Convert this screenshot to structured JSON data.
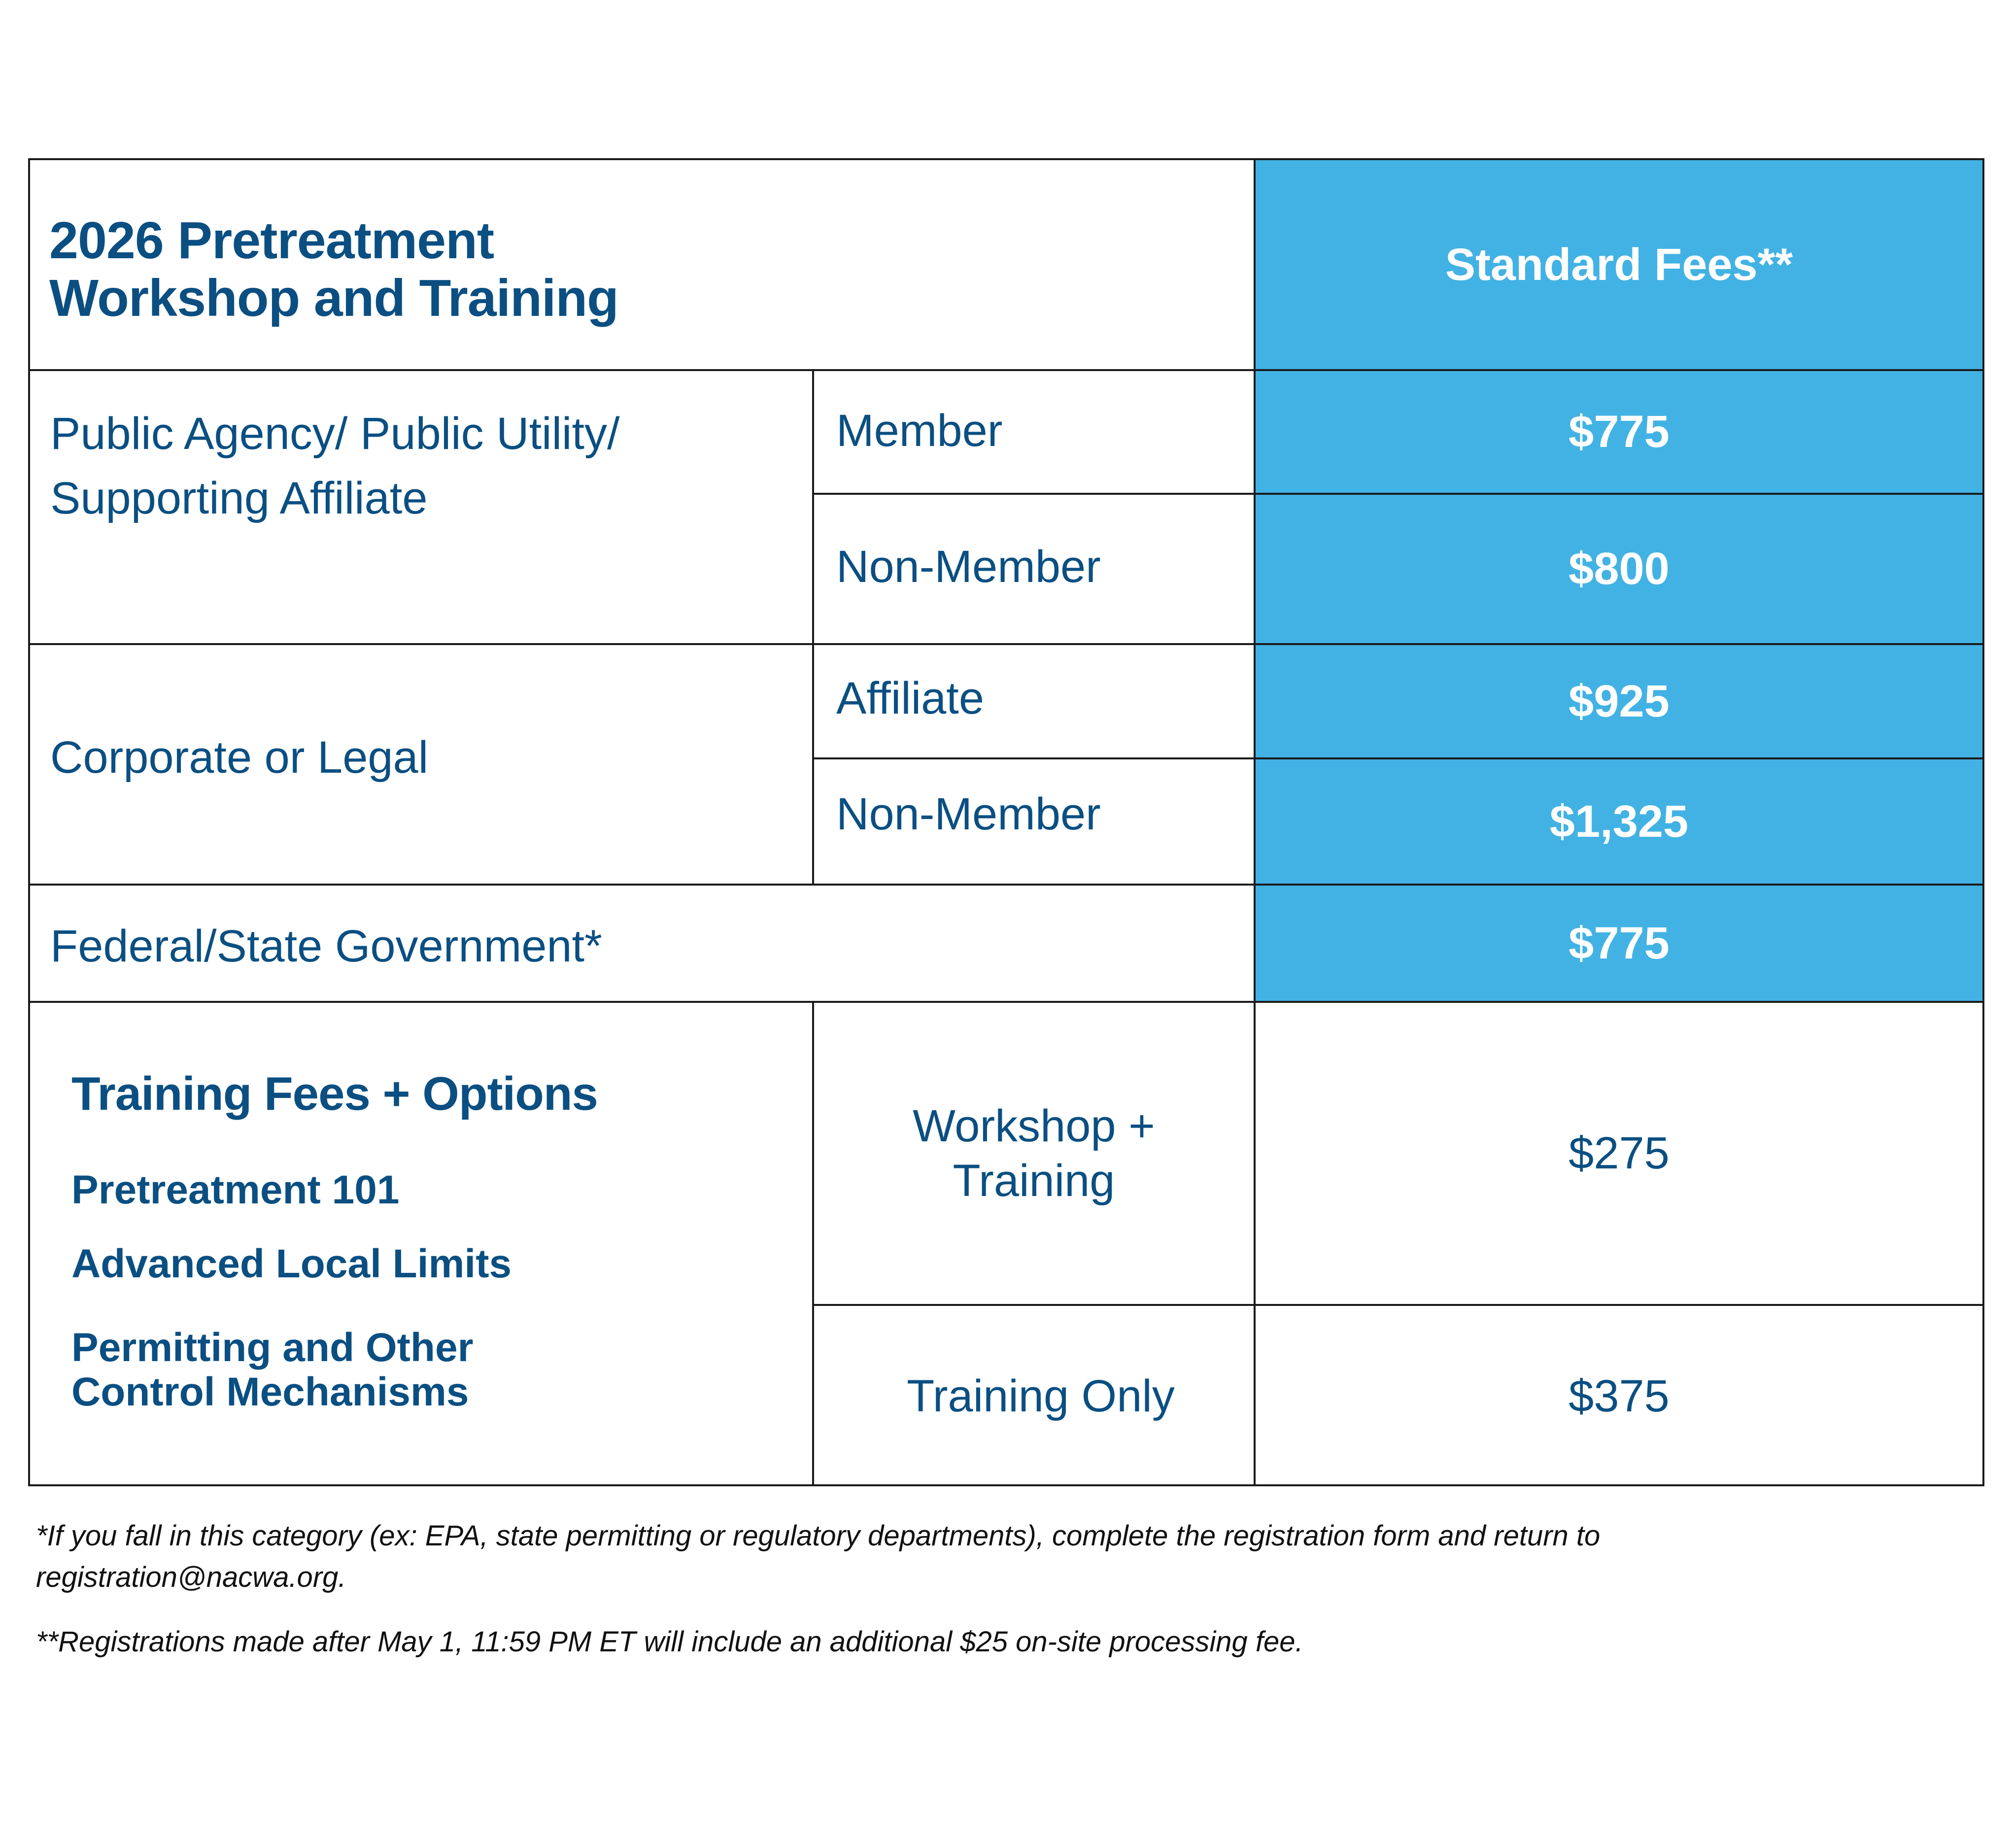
{
  "header": {
    "title_line1": "2026 Pretreatment",
    "title_line2": "Workshop and Training",
    "fee_column": "Standard Fees**"
  },
  "rows": {
    "public": {
      "category_line1": "Public Agency/ Public Utility/",
      "category_line2": "Supporting Affiliate",
      "member_label": "Member",
      "member_price": "$775",
      "nonmember_label": "Non-Member",
      "nonmember_price": "$800"
    },
    "corporate": {
      "category": "Corporate or Legal",
      "affiliate_label": "Affiliate",
      "affiliate_price": "$925",
      "nonmember_label": "Non-Member",
      "nonmember_price": "$1,325"
    },
    "government": {
      "category": "Federal/State Government*",
      "price": "$775"
    }
  },
  "training": {
    "heading": "Training Fees + Options",
    "items": [
      "Pretreatment 101",
      "Advanced Local Limits",
      "Permitting and Other",
      "Control Mechanisms"
    ],
    "workshop_label_line1": "Workshop +",
    "workshop_label_line2": "Training",
    "workshop_price": "$275",
    "training_only_label": "Training Only",
    "training_only_price": "$375"
  },
  "footnotes": {
    "note1_line1": "*If you fall in this category (ex: EPA, state permitting or regulatory departments), complete the registration form and return to",
    "note1_line2": "registration@nacwa.org.",
    "note2": "**Registrations made after May 1, 11:59 PM ET will include an additional $25 on-site processing fee."
  },
  "colors": {
    "accent_blue": "#42b2e4",
    "text_navy": "#0b4f82",
    "border": "#1a1a1a"
  }
}
